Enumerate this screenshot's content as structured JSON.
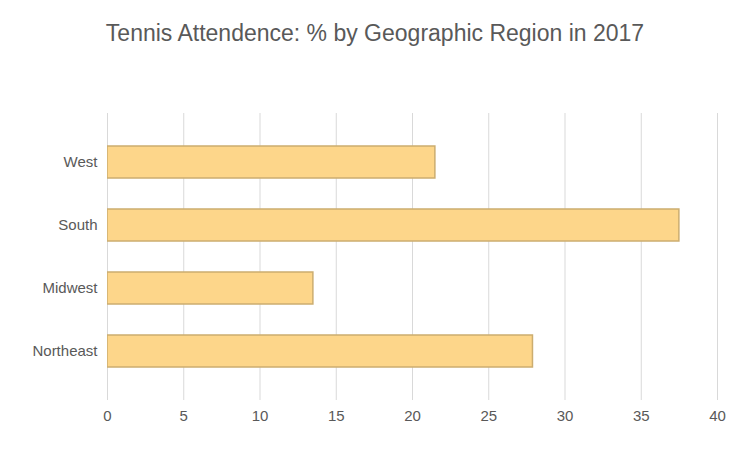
{
  "chart_data": {
    "type": "bar",
    "title": "Tennis Attendence: % by Geographic Region in 2017",
    "orientation": "horizontal",
    "categories": [
      "West",
      "South",
      "Midwest",
      "Northeast"
    ],
    "values": [
      21.5,
      37.5,
      13.5,
      27.9
    ],
    "color": "#fdd68a",
    "xlim": [
      0,
      40
    ],
    "xticks": [
      0,
      5,
      10,
      15,
      20,
      25,
      30,
      35,
      40
    ],
    "grid": true
  }
}
